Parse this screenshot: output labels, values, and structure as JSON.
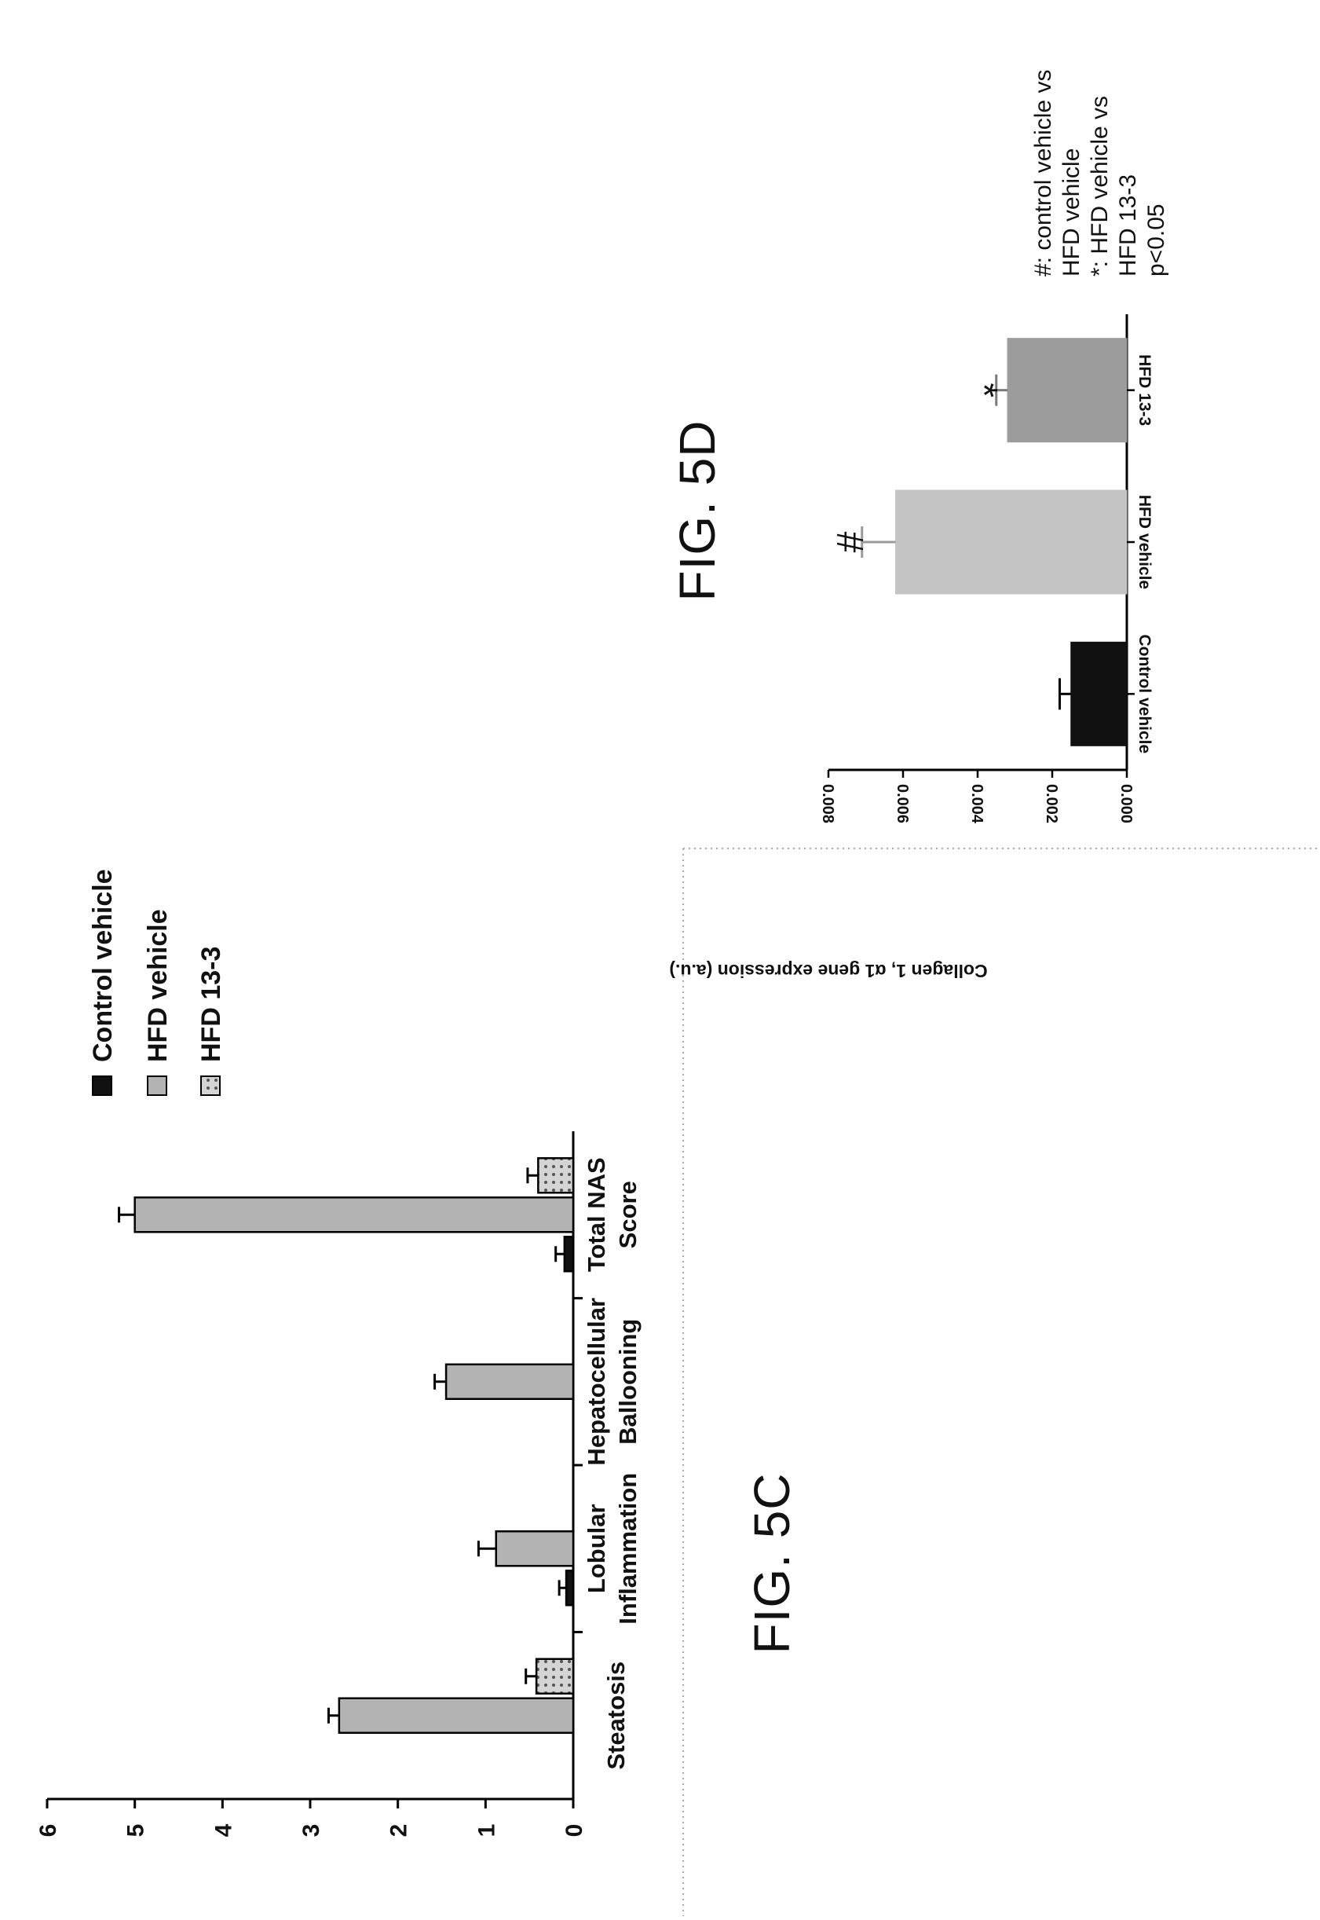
{
  "figures": {
    "fig_5c_label": "FIG. 5C",
    "fig_5d_label": "FIG. 5D"
  },
  "colors": {
    "control": "#111111",
    "hfd_vehicle_c": "#b3b3b3",
    "hfd_13_3_c": "#cfcfcf",
    "hfd_vehicle_d": "#c4c4c4",
    "hfd_13_3_d": "#9c9c9c"
  },
  "chart_data": [
    {
      "id": "5C",
      "type": "bar",
      "orientation": "rotated-90",
      "categories": [
        "Steatosis",
        "Lobular Inflammation",
        "Hepatocellular Ballooning",
        "Total NAS Score"
      ],
      "category_lines": [
        [
          "Steatosis"
        ],
        [
          "Lobular",
          "Inflammation"
        ],
        [
          "Hepatocellular",
          "Ballooning"
        ],
        [
          "Total NAS",
          "Score"
        ]
      ],
      "series": [
        {
          "name": "Control vehicle",
          "values": [
            0,
            0.08,
            0,
            0.1
          ],
          "errors": [
            0,
            0.08,
            0,
            0.1
          ],
          "pattern": "solid"
        },
        {
          "name": "HFD vehicle",
          "values": [
            2.67,
            0.88,
            1.45,
            5.0
          ],
          "errors": [
            0.12,
            0.2,
            0.13,
            0.18
          ],
          "pattern": "solid"
        },
        {
          "name": "HFD 13-3",
          "values": [
            0.42,
            0,
            0,
            0.4
          ],
          "errors": [
            0.12,
            0,
            0,
            0.12
          ],
          "pattern": "dotted"
        }
      ],
      "ylim": [
        0,
        6
      ],
      "yticks": [
        "0",
        "1",
        "2",
        "3",
        "4",
        "5",
        "6"
      ],
      "legend_position": "top-right"
    },
    {
      "id": "5D",
      "type": "bar",
      "orientation": "rotated-90",
      "categories": [
        "Control vehicle",
        "HFD vehicle",
        "HFD 13-3"
      ],
      "values": [
        0.0015,
        0.0062,
        0.0032
      ],
      "errors": [
        0.0003,
        0.0009,
        0.0003
      ],
      "significance": [
        "",
        "#",
        "*"
      ],
      "ylabel": "Collagen 1, α1 gene expression (a.u.)",
      "ylim": [
        0,
        0.008
      ],
      "yticks": [
        "0.000",
        "0.002",
        "0.004",
        "0.006",
        "0.008"
      ],
      "annotation_lines": [
        "#: control vehicle vs",
        "HFD vehicle",
        "*: HFD vehicle vs",
        "HFD 13-3",
        "p<0.05"
      ]
    }
  ]
}
